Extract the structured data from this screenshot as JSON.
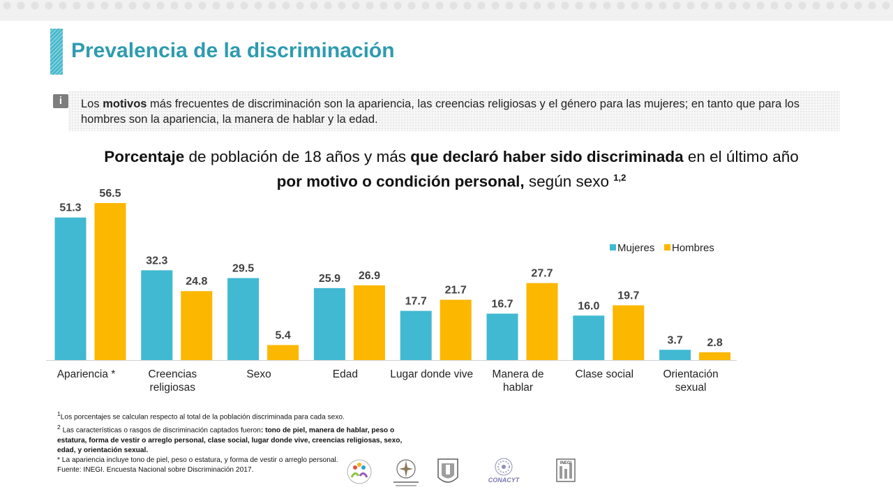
{
  "title": "Prevalencia de la discriminación",
  "info": {
    "icon": "info-icon",
    "icon_glyph": "i",
    "p1": "Los ",
    "b1": "motivos",
    "p2": " más frecuentes de discriminación son la apariencia, las creencias religiosas y el género para las mujeres; en tanto que para los hombres son la apariencia, la manera de hablar y la edad."
  },
  "chart_title": {
    "b1": "Porcentaje",
    "p1": " de población de 18 años y más ",
    "b2": "que declaró haber sido discriminada",
    "p2": " en el último año",
    "b3": "por motivo o condición personal,",
    "p3": " según sexo ",
    "sup": "1,2"
  },
  "chart_data": {
    "type": "bar",
    "categories": [
      "Apariencia *",
      "Creencias religiosas",
      "Sexo",
      "Edad",
      "Lugar donde vive",
      "Manera de hablar",
      "Clase social",
      "Orientación sexual"
    ],
    "category_lines": [
      [
        "Apariencia *"
      ],
      [
        "Creencias",
        "religiosas"
      ],
      [
        "Sexo"
      ],
      [
        "Edad"
      ],
      [
        "Lugar donde vive"
      ],
      [
        "Manera de",
        "hablar"
      ],
      [
        "Clase social"
      ],
      [
        "Orientación",
        "sexual"
      ]
    ],
    "series": [
      {
        "name": "Mujeres",
        "color": "#41b9d2",
        "values": [
          51.3,
          32.3,
          29.5,
          25.9,
          17.7,
          16.7,
          16.0,
          3.7
        ]
      },
      {
        "name": "Hombres",
        "color": "#fcb700",
        "values": [
          56.5,
          24.8,
          5.4,
          26.9,
          21.7,
          27.7,
          19.7,
          2.8
        ]
      }
    ],
    "value_labels": [
      [
        "51.3",
        "32.3",
        "29.5",
        "25.9",
        "17.7",
        "16.7",
        "16.0",
        "3.7"
      ],
      [
        "56.5",
        "24.8",
        "5.4",
        "26.9",
        "21.7",
        "27.7",
        "19.7",
        "2.8"
      ]
    ],
    "ylim": [
      0,
      56.5
    ],
    "legend": "top-right",
    "grid": false,
    "xlabel": "",
    "ylabel": ""
  },
  "footnotes": {
    "n1_sup": "1",
    "n1": "Los porcentajes se calculan respecto al total de la población discriminada para cada sexo.",
    "n2_sup": "2",
    "n2a": "Las características o rasgos de discriminación captados fueron",
    "n2b": ": tono de piel, manera de hablar, peso o estatura, forma de vestir o arreglo personal, clase social, lugar donde vive, creencias religiosas, sexo, edad, y orientación sexual.",
    "n3": "* La apariencia incluye tono de piel, peso o estatura, y forma de vestir o arreglo personal.",
    "source": "Fuente: INEGI. Encuesta Nacional sobre Discriminación 2017."
  },
  "logos": {
    "conacyt": "CONACYT",
    "inegi": "INEGI"
  }
}
